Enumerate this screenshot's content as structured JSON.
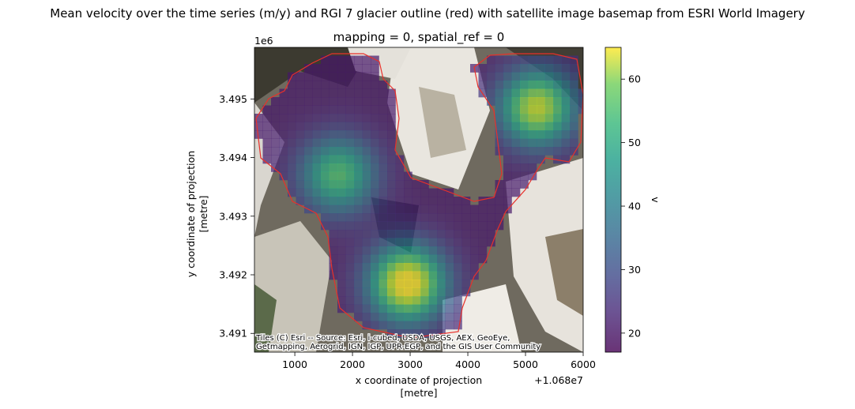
{
  "chart_data": {
    "type": "heatmap",
    "suptitle": "Mean velocity over the time series (m/y) and RGI 7 glacier outline (red) with satellite image basemap from ESRI World Imagery",
    "title": "mapping = 0, spatial_ref = 0",
    "xlabel": "x coordinate of projection\n[metre]",
    "ylabel": "y coordinate of projection\n[metre]",
    "x_ticks": [
      "1000",
      "2000",
      "3000",
      "4000",
      "5000",
      "6000"
    ],
    "x_tick_values": [
      1000,
      2000,
      3000,
      4000,
      5000,
      6000
    ],
    "x_offset": "+1.068e7",
    "xlim": [
      300,
      6000
    ],
    "y_ticks": [
      "3.491",
      "3.492",
      "3.493",
      "3.494",
      "3.495"
    ],
    "y_tick_values": [
      3.491,
      3.492,
      3.493,
      3.494,
      3.495
    ],
    "y_multiplier": "1e6",
    "ylim": [
      3.49068,
      3.49588
    ],
    "colorbar": {
      "label": "v",
      "ticks": [
        "20",
        "30",
        "40",
        "50",
        "60"
      ],
      "tick_values": [
        20,
        30,
        40,
        50,
        60
      ],
      "range": [
        17,
        65
      ],
      "colormap": "viridis",
      "alpha": 0.7
    },
    "attribution": "Tiles (C) Esri -- Source: Esri, i-cubed, USDA, USGS, AEX, GeoEye, Getmapping, Aerogrid, IGN, IGP, UPR-EGP, and the GIS User Community",
    "outline_color": "#e8302b",
    "velocity_hotspots": [
      {
        "x": 2950,
        "y": 3.49185,
        "v": 65
      },
      {
        "x": 5200,
        "y": 3.49485,
        "v": 58
      },
      {
        "x": 1750,
        "y": 3.4937,
        "v": 48
      }
    ]
  }
}
